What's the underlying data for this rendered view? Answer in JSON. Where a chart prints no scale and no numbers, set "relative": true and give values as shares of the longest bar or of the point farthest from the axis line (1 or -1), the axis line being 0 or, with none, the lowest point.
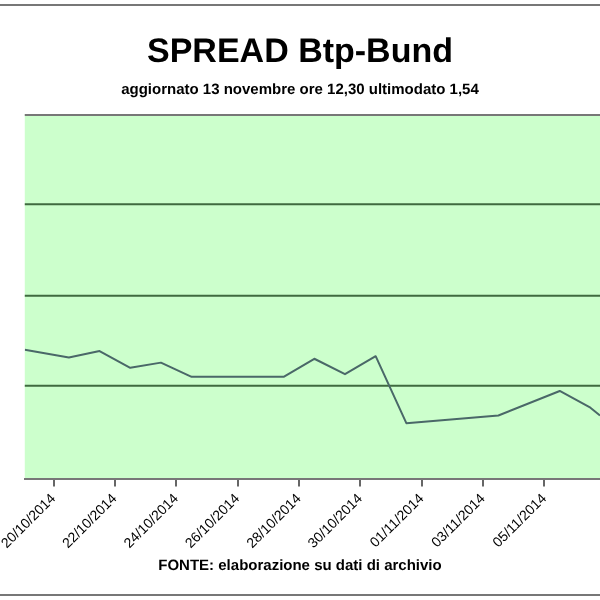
{
  "chart_data": {
    "type": "line",
    "title": "SPREAD Btp-Bund",
    "subtitle": "aggiornato 13 novembre ore 12,30  ultimodato 1,54",
    "annotations": [
      "FONTE: elaborazione su dati di archivio"
    ],
    "relative": true,
    "legend": false,
    "ref_lines": [
      {
        "axis": "y",
        "value": 0.72,
        "color": "#3f6a3f"
      },
      {
        "axis": "y",
        "value": 1.42,
        "color": "#3f6a3f"
      },
      {
        "axis": "y",
        "value": 2.13,
        "color": "#3f6a3f"
      }
    ],
    "marker": "none",
    "line_style": "solid",
    "xlim": [
      "2014-10-19T01:30",
      "2014-11-06T19:30"
    ],
    "xticks": [
      {
        "value": "2014-10-20",
        "label": "20/10/2014"
      },
      {
        "value": "2014-10-22",
        "label": "22/10/2014"
      },
      {
        "value": "2014-10-24",
        "label": "24/10/2014"
      },
      {
        "value": "2014-10-26",
        "label": "26/10/2014"
      },
      {
        "value": "2014-10-28",
        "label": "28/10/2014"
      },
      {
        "value": "2014-10-30",
        "label": "30/10/2014"
      },
      {
        "value": "2014-11-01",
        "label": "01/11/2014"
      },
      {
        "value": "2014-11-03",
        "label": "03/11/2014"
      },
      {
        "value": "2014-11-05",
        "label": "05/11/2014"
      }
    ],
    "x": [
      "2014-10-19T01:30",
      "2014-10-20T12:00",
      "2014-10-21T12:00",
      "2014-10-22T12:00",
      "2014-10-23T12:00",
      "2014-10-24T12:00",
      "2014-10-27T12:00",
      "2014-10-28T12:00",
      "2014-10-29T12:00",
      "2014-10-30T12:00",
      "2014-10-31T12:00",
      "2014-11-03T12:00",
      "2014-11-05T12:00",
      "2014-11-06T12:00",
      "2014-11-06T19:30"
    ],
    "series": [
      {
        "color": "#4a6868",
        "values": [
          1,
          0.94,
          0.99,
          0.86,
          0.9,
          0.79,
          0.79,
          0.93,
          0.81,
          0.95,
          0.43,
          0.49,
          0.68,
          0.55,
          0.49
        ]
      }
    ]
  }
}
